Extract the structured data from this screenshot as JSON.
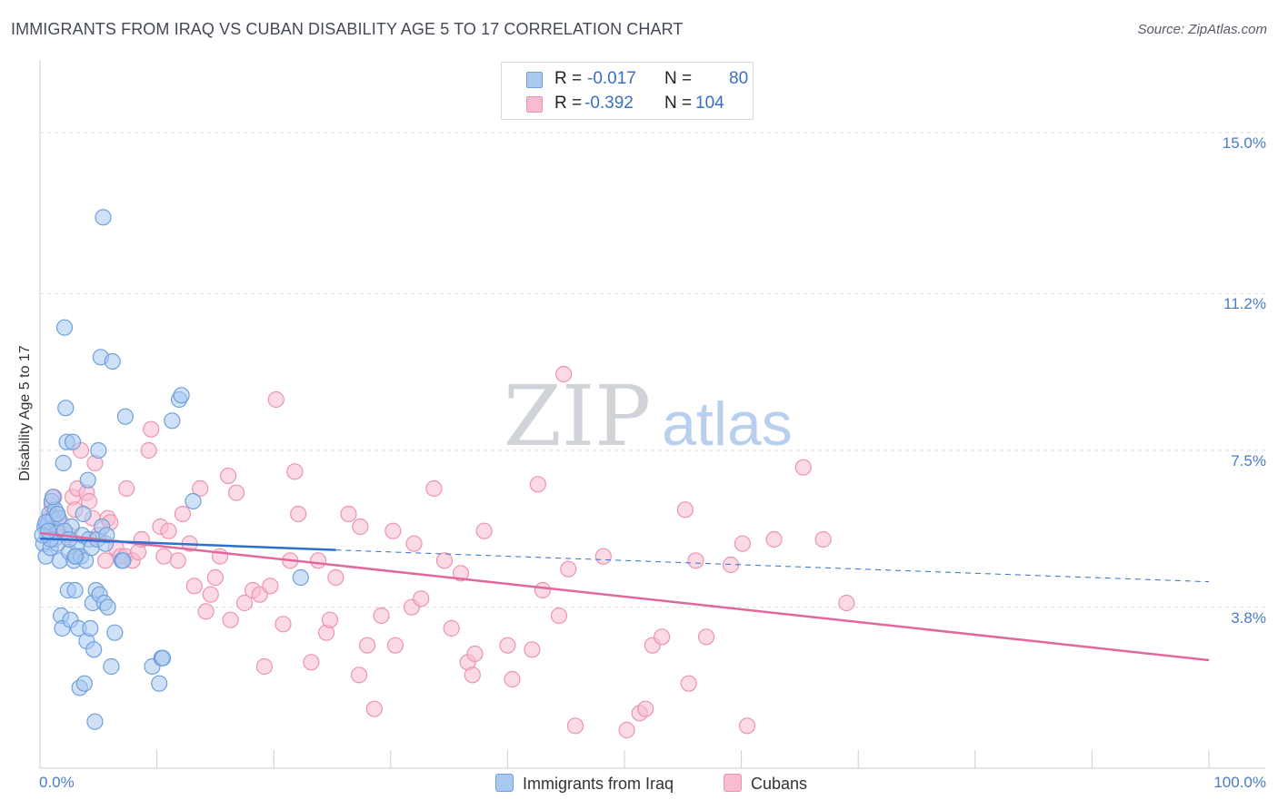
{
  "title": "IMMIGRANTS FROM IRAQ VS CUBAN DISABILITY AGE 5 TO 17 CORRELATION CHART",
  "source": "Source: ZipAtlas.com",
  "watermark": {
    "zip": "ZIP",
    "atlas": "atlas"
  },
  "stats": {
    "r_label": "R =",
    "n_label": "N =",
    "iraq": {
      "r": "-0.017",
      "n": "80"
    },
    "cubans": {
      "r": "-0.392",
      "n": "104"
    }
  },
  "legend": {
    "iraq": "Immigrants from Iraq",
    "cubans": "Cubans"
  },
  "colors": {
    "iraq_fill": "#a8c8f0",
    "iraq_stroke": "#6f9fdc",
    "iraq_line": "#2e6fcf",
    "cubans_fill": "#f7bcd0",
    "cubans_stroke": "#ec93b2",
    "cubans_line": "#e0689a",
    "grid": "#d9dce1",
    "tick_text": "#4a7cc7"
  },
  "chart_data": {
    "type": "scatter",
    "title": "IMMIGRANTS FROM IRAQ VS CUBAN DISABILITY AGE 5 TO 17 CORRELATION CHART",
    "xlabel": "",
    "ylabel": "Disability Age 5 to 17",
    "xlim": [
      0,
      100
    ],
    "ylim": [
      0,
      16.5
    ],
    "y_ticks": [
      3.8,
      7.5,
      11.2,
      15.0
    ],
    "y_tick_labels": [
      "3.8%",
      "7.5%",
      "11.2%",
      "15.0%"
    ],
    "x_tick_labels": [
      "0.0%",
      "100.0%"
    ],
    "grid": true,
    "series": [
      {
        "name": "Immigrants from Iraq",
        "r": -0.017,
        "n": 80,
        "trend": {
          "x": [
            0,
            25.3
          ],
          "y": [
            5.42,
            5.15
          ],
          "dashed_extension_to": [
            100,
            4.4
          ]
        },
        "points": [
          [
            0.3,
            5.3
          ],
          [
            0.4,
            5.7
          ],
          [
            0.5,
            5.0
          ],
          [
            0.6,
            5.5
          ],
          [
            0.7,
            5.8
          ],
          [
            0.8,
            6.0
          ],
          [
            0.9,
            5.2
          ],
          [
            1.0,
            6.3
          ],
          [
            1.1,
            5.9
          ],
          [
            1.2,
            5.4
          ],
          [
            1.3,
            6.1
          ],
          [
            1.4,
            5.6
          ],
          [
            1.5,
            5.3
          ],
          [
            1.6,
            5.9
          ],
          [
            1.7,
            4.9
          ],
          [
            1.8,
            3.6
          ],
          [
            1.9,
            3.3
          ],
          [
            2.0,
            7.2
          ],
          [
            2.1,
            10.4
          ],
          [
            2.2,
            8.5
          ],
          [
            2.3,
            7.7
          ],
          [
            2.4,
            4.2
          ],
          [
            2.5,
            5.1
          ],
          [
            2.6,
            3.5
          ],
          [
            2.7,
            5.7
          ],
          [
            2.8,
            7.7
          ],
          [
            2.9,
            4.9
          ],
          [
            3.0,
            4.2
          ],
          [
            3.1,
            5.0
          ],
          [
            3.2,
            5.3
          ],
          [
            3.3,
            3.3
          ],
          [
            3.4,
            1.9
          ],
          [
            3.5,
            5.0
          ],
          [
            3.6,
            5.5
          ],
          [
            3.7,
            6.0
          ],
          [
            3.8,
            2.0
          ],
          [
            3.9,
            4.9
          ],
          [
            4.0,
            3.0
          ],
          [
            4.1,
            6.8
          ],
          [
            4.2,
            5.4
          ],
          [
            4.3,
            3.3
          ],
          [
            4.4,
            5.2
          ],
          [
            4.5,
            3.9
          ],
          [
            4.6,
            2.8
          ],
          [
            4.7,
            1.1
          ],
          [
            4.8,
            4.2
          ],
          [
            4.9,
            5.4
          ],
          [
            5.0,
            7.5
          ],
          [
            5.1,
            4.1
          ],
          [
            5.2,
            9.7
          ],
          [
            5.3,
            5.7
          ],
          [
            5.4,
            13.0
          ],
          [
            5.5,
            3.9
          ],
          [
            5.6,
            5.3
          ],
          [
            5.7,
            5.5
          ],
          [
            5.8,
            3.8
          ],
          [
            6.1,
            2.4
          ],
          [
            6.2,
            9.6
          ],
          [
            6.4,
            3.2
          ],
          [
            7.0,
            4.9
          ],
          [
            7.1,
            4.9
          ],
          [
            7.3,
            8.3
          ],
          [
            9.6,
            2.4
          ],
          [
            10.2,
            2.0
          ],
          [
            10.4,
            2.6
          ],
          [
            10.5,
            2.6
          ],
          [
            11.3,
            8.2
          ],
          [
            11.9,
            8.7
          ],
          [
            12.1,
            8.8
          ],
          [
            13.1,
            6.3
          ],
          [
            22.3,
            4.5
          ],
          [
            0.5,
            5.8
          ],
          [
            0.9,
            5.4
          ],
          [
            1.1,
            6.4
          ],
          [
            1.5,
            6.0
          ],
          [
            2.1,
            5.6
          ],
          [
            2.5,
            5.4
          ],
          [
            3.0,
            5.0
          ],
          [
            0.2,
            5.5
          ],
          [
            0.7,
            5.6
          ]
        ]
      },
      {
        "name": "Cubans",
        "r": -0.392,
        "n": 104,
        "trend": {
          "x": [
            0,
            100
          ],
          "y": [
            5.55,
            2.55
          ]
        },
        "points": [
          [
            0.6,
            5.7
          ],
          [
            0.8,
            5.9
          ],
          [
            1.0,
            6.2
          ],
          [
            1.2,
            6.4
          ],
          [
            1.4,
            6.0
          ],
          [
            1.6,
            5.6
          ],
          [
            1.8,
            5.8
          ],
          [
            2.5,
            5.5
          ],
          [
            2.8,
            6.4
          ],
          [
            3.0,
            6.1
          ],
          [
            3.2,
            6.6
          ],
          [
            3.5,
            7.5
          ],
          [
            4.0,
            6.5
          ],
          [
            4.2,
            6.3
          ],
          [
            4.5,
            5.9
          ],
          [
            4.7,
            7.2
          ],
          [
            5.0,
            5.5
          ],
          [
            5.6,
            4.9
          ],
          [
            5.8,
            5.9
          ],
          [
            6.0,
            5.8
          ],
          [
            6.5,
            5.2
          ],
          [
            6.9,
            5.0
          ],
          [
            7.3,
            5.0
          ],
          [
            7.4,
            6.6
          ],
          [
            7.9,
            4.9
          ],
          [
            8.4,
            5.1
          ],
          [
            8.7,
            5.4
          ],
          [
            9.5,
            8.0
          ],
          [
            9.3,
            7.5
          ],
          [
            10.3,
            5.7
          ],
          [
            10.6,
            5.0
          ],
          [
            11.0,
            5.6
          ],
          [
            11.8,
            4.9
          ],
          [
            12.2,
            6.0
          ],
          [
            12.8,
            5.3
          ],
          [
            13.2,
            4.3
          ],
          [
            13.7,
            6.6
          ],
          [
            14.2,
            3.7
          ],
          [
            14.6,
            4.1
          ],
          [
            15.0,
            4.5
          ],
          [
            15.4,
            5.0
          ],
          [
            16.1,
            6.9
          ],
          [
            16.3,
            3.5
          ],
          [
            16.8,
            6.5
          ],
          [
            17.5,
            3.9
          ],
          [
            18.2,
            4.2
          ],
          [
            18.8,
            4.1
          ],
          [
            19.2,
            2.4
          ],
          [
            19.7,
            4.3
          ],
          [
            20.2,
            8.7
          ],
          [
            20.8,
            3.4
          ],
          [
            21.4,
            4.9
          ],
          [
            21.8,
            7.0
          ],
          [
            22.1,
            6.0
          ],
          [
            23.2,
            2.5
          ],
          [
            23.8,
            4.9
          ],
          [
            24.5,
            3.2
          ],
          [
            24.8,
            3.5
          ],
          [
            25.3,
            4.5
          ],
          [
            26.4,
            6.0
          ],
          [
            27.3,
            2.2
          ],
          [
            27.4,
            5.7
          ],
          [
            28.0,
            2.9
          ],
          [
            28.6,
            1.4
          ],
          [
            29.2,
            3.6
          ],
          [
            30.2,
            5.6
          ],
          [
            30.4,
            2.9
          ],
          [
            31.8,
            3.8
          ],
          [
            32.0,
            5.3
          ],
          [
            32.6,
            4.0
          ],
          [
            33.7,
            6.6
          ],
          [
            34.6,
            4.9
          ],
          [
            35.2,
            3.3
          ],
          [
            36.0,
            4.6
          ],
          [
            36.6,
            2.5
          ],
          [
            37.0,
            2.2
          ],
          [
            37.2,
            2.7
          ],
          [
            38.0,
            5.6
          ],
          [
            40.0,
            2.9
          ],
          [
            40.4,
            2.1
          ],
          [
            42.1,
            2.8
          ],
          [
            42.6,
            6.7
          ],
          [
            43.0,
            4.2
          ],
          [
            44.4,
            3.6
          ],
          [
            44.8,
            9.3
          ],
          [
            45.2,
            4.7
          ],
          [
            45.8,
            1.0
          ],
          [
            48.2,
            5.0
          ],
          [
            50.2,
            0.9
          ],
          [
            51.3,
            1.3
          ],
          [
            51.8,
            1.4
          ],
          [
            52.4,
            2.9
          ],
          [
            53.2,
            3.1
          ],
          [
            55.2,
            6.1
          ],
          [
            55.5,
            2.0
          ],
          [
            56.1,
            4.9
          ],
          [
            57.0,
            3.1
          ],
          [
            59.1,
            4.8
          ],
          [
            60.1,
            5.3
          ],
          [
            60.5,
            1.0
          ],
          [
            62.8,
            5.4
          ],
          [
            65.3,
            7.1
          ],
          [
            67.0,
            5.4
          ],
          [
            69.0,
            3.9
          ]
        ]
      }
    ]
  }
}
